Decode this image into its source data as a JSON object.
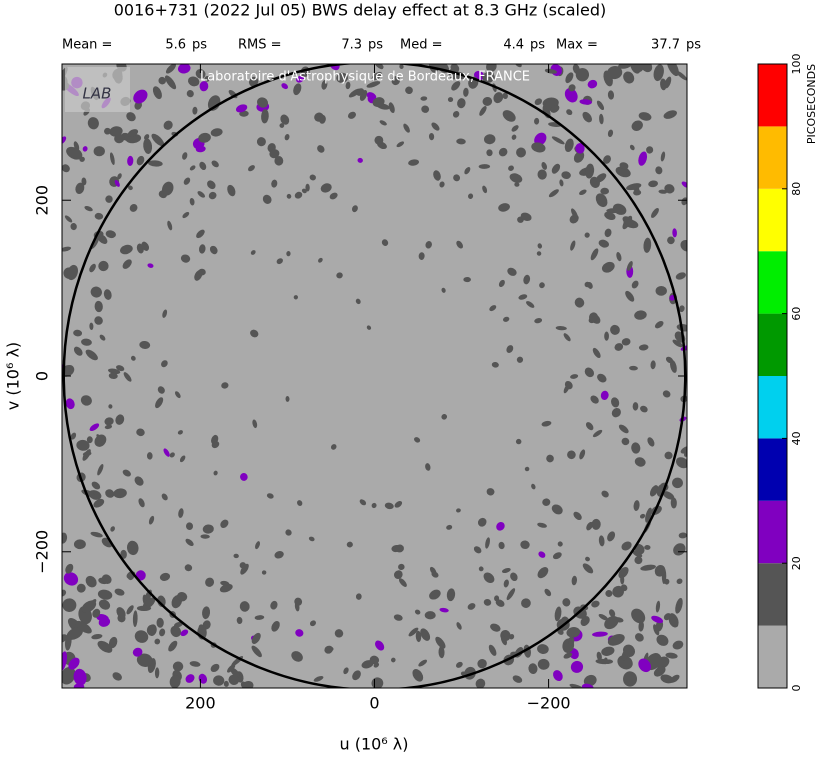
{
  "chart_data": {
    "type": "uvmap",
    "title": "0016+731  (2022 Jul 05)   BWS delay effect at  8.3 GHz (scaled)",
    "stats": [
      {
        "label": "Mean =",
        "value": 5.6,
        "unit": "ps"
      },
      {
        "label": "RMS =",
        "value": 7.3,
        "unit": "ps"
      },
      {
        "label": "Med =",
        "value": 4.4,
        "unit": "ps"
      },
      {
        "label": "Max =",
        "value": 37.7,
        "unit": "ps"
      }
    ],
    "watermark": "Laboratoire d'Astrophysique de Bordeaux, FRANCE",
    "logo": "LAB",
    "xlabel": "u  (10⁶ λ)",
    "ylabel": "v  (10⁶ λ)",
    "xlim": [
      359,
      -359
    ],
    "ylim": [
      -355,
      355
    ],
    "xticks": [
      200,
      0,
      {
        "value": -200,
        "label": "−200"
      }
    ],
    "yticks": [
      {
        "value": -200,
        "label": "−200"
      },
      0,
      200
    ],
    "circle_radius": 357,
    "background_color": "#aaaaaa",
    "colorbar": {
      "label": "PICOSECONDS",
      "bounds": [
        0,
        10,
        20,
        30,
        40,
        50,
        60,
        70,
        80,
        90,
        100
      ],
      "colors": [
        "#aaaaaa",
        "#555555",
        "#8000c0",
        "#0000b0",
        "#00d0ee",
        "#009900",
        "#00ee00",
        "#ffff00",
        "#ffbb00",
        "#ff0000"
      ],
      "ticks": [
        0,
        20,
        40,
        60,
        80,
        100
      ]
    }
  }
}
